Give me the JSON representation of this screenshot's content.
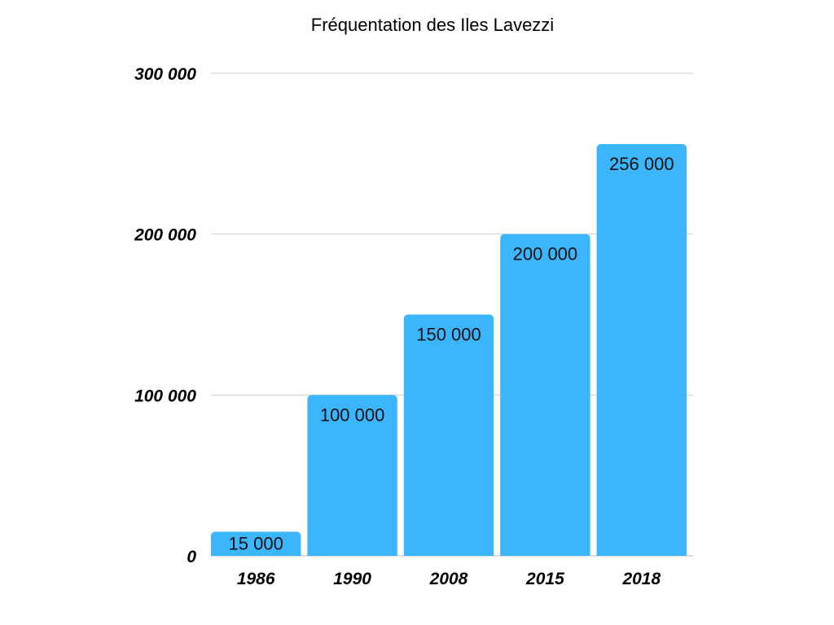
{
  "chart_data": {
    "type": "bar",
    "title": "Fréquentation des Iles Lavezzi",
    "xlabel": "",
    "ylabel": "",
    "categories": [
      "1986",
      "1990",
      "2008",
      "2015",
      "2018"
    ],
    "values": [
      15000,
      100000,
      150000,
      200000,
      256000
    ],
    "data_labels": [
      "15 000",
      "100 000",
      "150 000",
      "200 000",
      "256 000"
    ],
    "ylim": [
      0,
      300000
    ],
    "yticks": [
      0,
      100000,
      200000,
      300000
    ],
    "ytick_labels": [
      "0",
      "100 000",
      "200 000",
      "300 000"
    ],
    "grid": true,
    "legend": "none",
    "bar_color": "#3bb5fb"
  }
}
